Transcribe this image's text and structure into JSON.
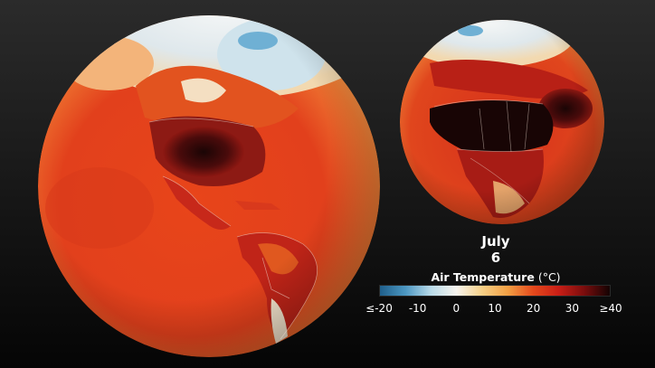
{
  "date": {
    "month": "July",
    "day": "6"
  },
  "legend": {
    "title": "Air Temperature",
    "unit": "(°C)",
    "ticks": [
      "≤-20",
      "-10",
      "0",
      "10",
      "20",
      "30",
      "≥40"
    ],
    "scale_min": -20,
    "scale_max": 40,
    "colors": [
      "#1f5f8b",
      "#4c97c2",
      "#b9dbe9",
      "#f7f4ee",
      "#f6d087",
      "#f2a044",
      "#e4491c",
      "#c91e16",
      "#7a0d0d",
      "#140303"
    ]
  },
  "globes": [
    {
      "region": "Americas",
      "projection": "orthographic",
      "center": "North America"
    },
    {
      "region": "Europe-Africa",
      "projection": "orthographic",
      "center": "Africa"
    }
  ]
}
